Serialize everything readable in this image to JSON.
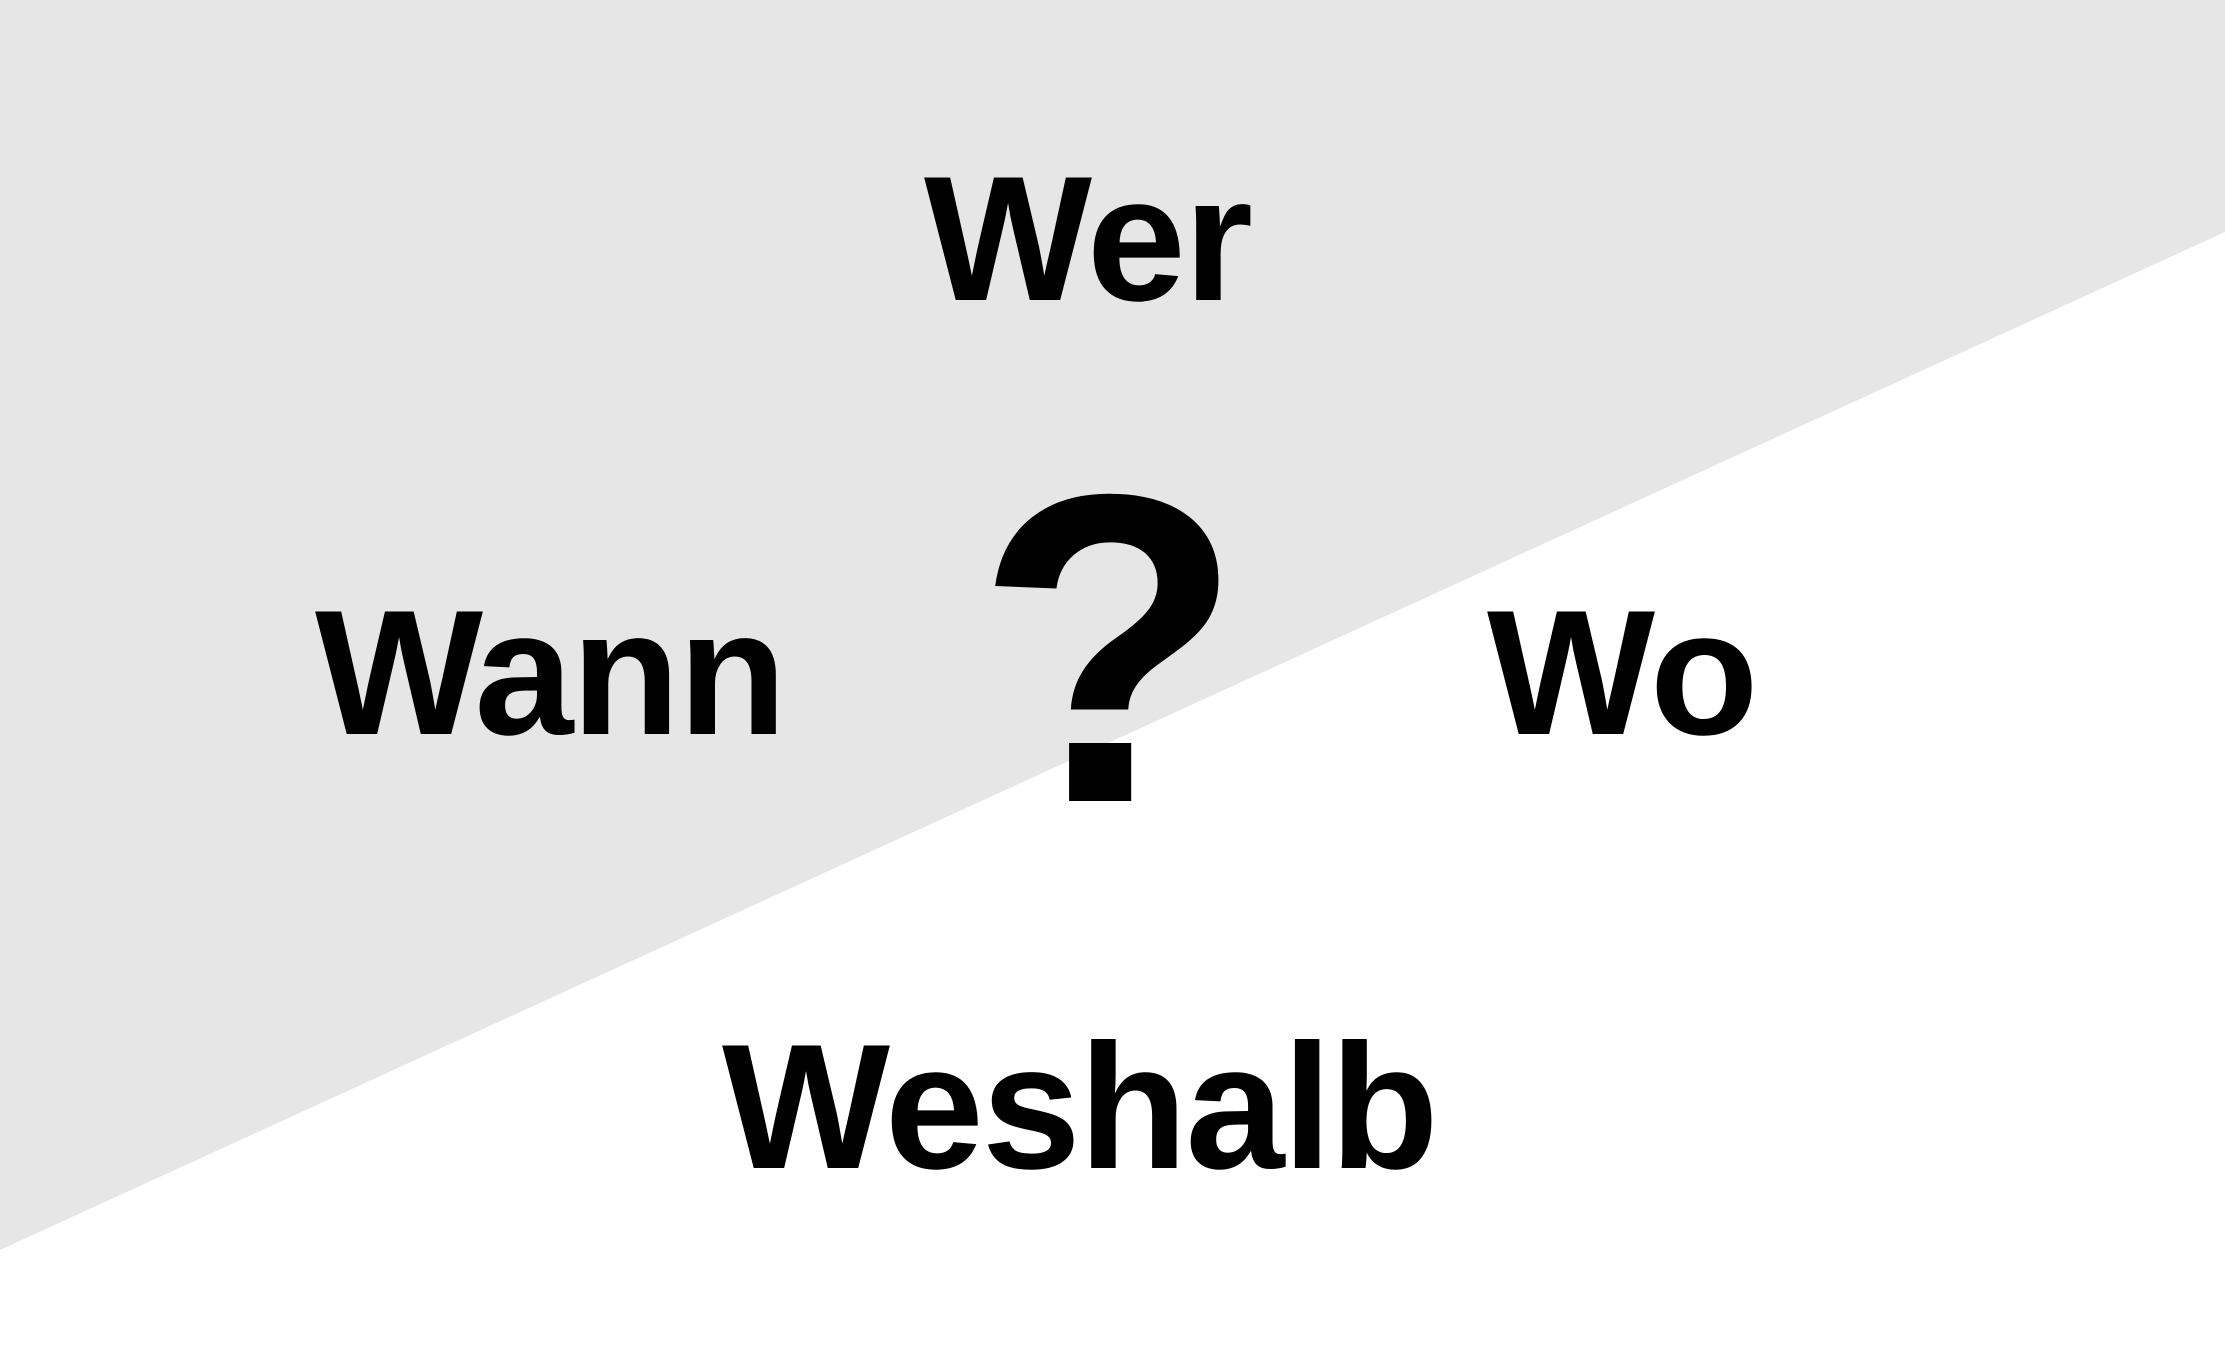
{
  "colors": {
    "background_light": "#ffffff",
    "background_grey": "#e6e6e6",
    "text": "#000000"
  },
  "words": {
    "top": "Wer",
    "left": "Wann",
    "right": "Wo",
    "bottom": "Weshalb"
  },
  "center_symbol": "?"
}
